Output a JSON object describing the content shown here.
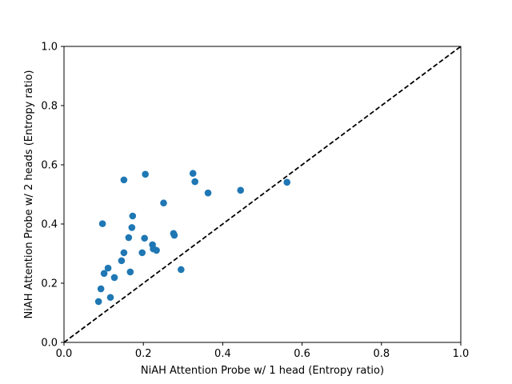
{
  "chart_data": {
    "type": "scatter",
    "xlabel": "NiAH Attention Probe w/ 1 head (Entropy ratio)",
    "ylabel": "NiAH Attention Probe w/ 2 heads (Entropy ratio)",
    "xlim": [
      0.0,
      1.0
    ],
    "ylim": [
      0.0,
      1.0
    ],
    "xticks": [
      "0.0",
      "0.2",
      "0.4",
      "0.6",
      "0.8",
      "1.0"
    ],
    "yticks": [
      "0.0",
      "0.2",
      "0.4",
      "0.6",
      "0.8",
      "1.0"
    ],
    "grid": false,
    "marker_color": "#1f77b4",
    "reference_line": {
      "style": "dashed",
      "color": "#000000",
      "from": [
        0,
        0
      ],
      "to": [
        1,
        1
      ]
    },
    "series": [
      {
        "points": [
          [
            0.087,
            0.138
          ],
          [
            0.093,
            0.181
          ],
          [
            0.097,
            0.401
          ],
          [
            0.101,
            0.233
          ],
          [
            0.111,
            0.251
          ],
          [
            0.117,
            0.152
          ],
          [
            0.127,
            0.219
          ],
          [
            0.145,
            0.276
          ],
          [
            0.151,
            0.303
          ],
          [
            0.151,
            0.549
          ],
          [
            0.163,
            0.354
          ],
          [
            0.167,
            0.238
          ],
          [
            0.171,
            0.388
          ],
          [
            0.173,
            0.427
          ],
          [
            0.197,
            0.303
          ],
          [
            0.203,
            0.352
          ],
          [
            0.205,
            0.568
          ],
          [
            0.223,
            0.33
          ],
          [
            0.225,
            0.316
          ],
          [
            0.233,
            0.311
          ],
          [
            0.251,
            0.471
          ],
          [
            0.276,
            0.368
          ],
          [
            0.278,
            0.362
          ],
          [
            0.295,
            0.246
          ],
          [
            0.325,
            0.571
          ],
          [
            0.33,
            0.543
          ],
          [
            0.363,
            0.505
          ],
          [
            0.445,
            0.514
          ],
          [
            0.562,
            0.541
          ]
        ]
      }
    ]
  }
}
